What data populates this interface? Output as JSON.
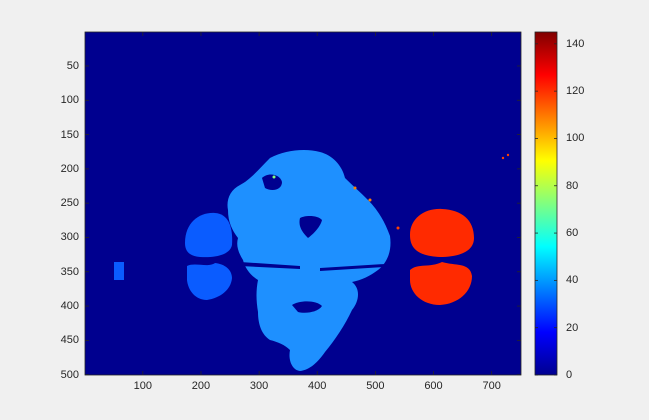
{
  "axes": {
    "x_ticks": [
      "100",
      "200",
      "300",
      "400",
      "500",
      "600",
      "700"
    ],
    "y_ticks": [
      "50",
      "100",
      "150",
      "200",
      "250",
      "300",
      "350",
      "400",
      "450",
      "500"
    ],
    "x_range": [
      1,
      750
    ],
    "y_range": [
      1,
      500
    ],
    "y_reversed": true
  },
  "colorbar": {
    "ticks": [
      "0",
      "20",
      "40",
      "60",
      "80",
      "100",
      "120",
      "140"
    ],
    "range": [
      0,
      145
    ],
    "colormap": "jet"
  },
  "colors": {
    "figure_background": "#f0f0f0",
    "image_background": "#00008f",
    "light_blue_region": "#1e90ff",
    "blue_region": "#0a5cff",
    "red_region": "#ff2a00",
    "axis_line": "#262626"
  },
  "image": {
    "description_regions": [
      {
        "name": "face-shape",
        "color_value": 35
      },
      {
        "name": "left-ear-shapes",
        "color_value": 25
      },
      {
        "name": "right-ear-shapes",
        "color_value": 125
      }
    ]
  }
}
